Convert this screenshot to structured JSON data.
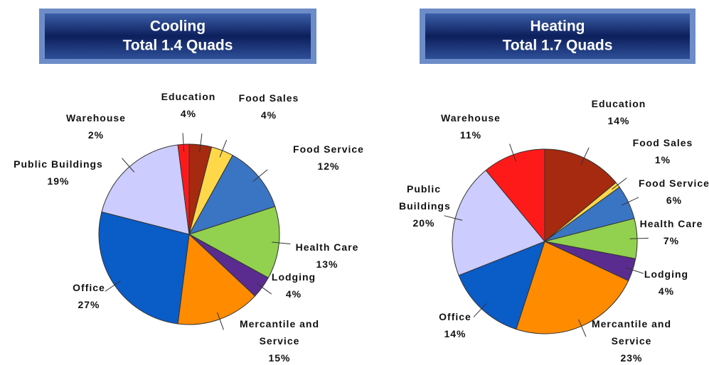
{
  "chart_data": [
    {
      "type": "pie",
      "title": "Cooling",
      "subtitle": "Total 1.4 Quads",
      "categories": [
        "Education",
        "Food Sales",
        "Food Service",
        "Health Care",
        "Lodging",
        "Mercantile and Service",
        "Office",
        "Public Buildings",
        "Warehouse"
      ],
      "values": [
        4,
        4,
        12,
        13,
        4,
        15,
        27,
        19,
        2
      ],
      "value_labels": [
        "4%",
        "4%",
        "12%",
        "13%",
        "4%",
        "15%",
        "27%",
        "19%",
        "2%"
      ],
      "colors": [
        "#a52a0f",
        "#ffd84a",
        "#3a75c4",
        "#92d050",
        "#5b2c8f",
        "#ff8c00",
        "#0a5cc7",
        "#ccccff",
        "#ff1a1a"
      ]
    },
    {
      "type": "pie",
      "title": "Heating",
      "subtitle": "Total 1.7 Quads",
      "categories": [
        "Education",
        "Food Sales",
        "Food Service",
        "Health Care",
        "Lodging",
        "Mercantile and Service",
        "Office",
        "Public Buildings",
        "Warehouse"
      ],
      "values": [
        14,
        1,
        6,
        7,
        4,
        23,
        14,
        20,
        11
      ],
      "value_labels": [
        "14%",
        "1%",
        "6%",
        "7%",
        "4%",
        "23%",
        "14%",
        "20%",
        "11%"
      ],
      "colors": [
        "#a52a0f",
        "#ffd84a",
        "#3a75c4",
        "#92d050",
        "#5b2c8f",
        "#ff8c00",
        "#0a5cc7",
        "#ccccff",
        "#ff1a1a"
      ]
    }
  ]
}
